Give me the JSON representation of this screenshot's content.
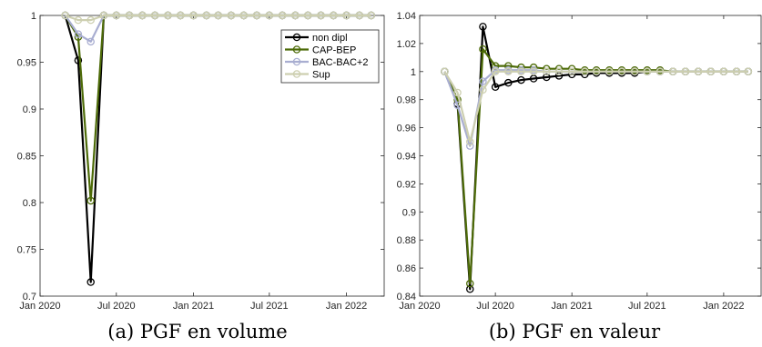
{
  "chart_data": [
    {
      "type": "line",
      "caption": "(a) PGF en volume",
      "xlim": [
        "2020-01-01",
        "2022-04-01"
      ],
      "ylim": [
        0.7,
        1.0
      ],
      "yticks": [
        0.7,
        0.75,
        0.8,
        0.85,
        0.9,
        0.95,
        1
      ],
      "ytick_labels": [
        "0.7",
        "0.75",
        "0.8",
        "0.85",
        "0.9",
        "0.95",
        "1"
      ],
      "xticks": [
        "2020-01-01",
        "2020-07-01",
        "2021-01-01",
        "2021-07-01",
        "2022-01-01"
      ],
      "xtick_labels": [
        "Jan 2020",
        "Jul 2020",
        "Jan 2021",
        "Jul 2021",
        "Jan 2022"
      ],
      "x": [
        "2020-03-01",
        "2020-04-01",
        "2020-05-01",
        "2020-06-01",
        "2020-07-01",
        "2020-08-01",
        "2020-09-01",
        "2020-10-01",
        "2020-11-01",
        "2020-12-01",
        "2021-01-01",
        "2021-02-01",
        "2021-03-01",
        "2021-04-01",
        "2021-05-01",
        "2021-06-01",
        "2021-07-01",
        "2021-08-01",
        "2021-09-01",
        "2021-10-01",
        "2021-11-01",
        "2021-12-01",
        "2022-01-01",
        "2022-02-01",
        "2022-03-01"
      ],
      "legend": {
        "placement": "top-right"
      },
      "series": [
        {
          "name": "non dipl",
          "color": "#000000",
          "values": [
            1,
            0.952,
            0.715,
            1,
            1,
            1,
            1,
            1,
            1,
            1,
            1,
            1,
            1,
            1,
            1,
            1,
            1,
            1,
            1,
            1,
            1,
            1,
            1,
            1,
            1
          ]
        },
        {
          "name": "CAP-BEP",
          "color": "#4d6b08",
          "values": [
            1,
            0.977,
            0.802,
            1,
            1,
            1,
            1,
            1,
            1,
            1,
            1,
            1,
            1,
            1,
            1,
            1,
            1,
            1,
            1,
            1,
            1,
            1,
            1,
            1,
            1
          ]
        },
        {
          "name": "BAC-BAC+2",
          "color": "#a9aed1",
          "values": [
            1,
            0.98,
            0.972,
            1,
            1,
            1,
            1,
            1,
            1,
            1,
            1,
            1,
            1,
            1,
            1,
            1,
            1,
            1,
            1,
            1,
            1,
            1,
            1,
            1,
            1
          ]
        },
        {
          "name": "Sup",
          "color": "#cdcfb0",
          "values": [
            1,
            0.995,
            0.995,
            1,
            1,
            1,
            1,
            1,
            1,
            1,
            1,
            1,
            1,
            1,
            1,
            1,
            1,
            1,
            1,
            1,
            1,
            1,
            1,
            1,
            1
          ]
        }
      ]
    },
    {
      "type": "line",
      "caption": "(b) PGF en valeur",
      "xlim": [
        "2020-01-01",
        "2022-04-01"
      ],
      "ylim": [
        0.84,
        1.04
      ],
      "yticks": [
        0.84,
        0.86,
        0.88,
        0.9,
        0.92,
        0.94,
        0.96,
        0.98,
        1,
        1.02,
        1.04
      ],
      "ytick_labels": [
        "0.84",
        "0.86",
        "0.88",
        "0.9",
        "0.92",
        "0.94",
        "0.96",
        "0.98",
        "1",
        "1.02",
        "1.04"
      ],
      "xticks": [
        "2020-01-01",
        "2020-07-01",
        "2021-01-01",
        "2021-07-01",
        "2022-01-01"
      ],
      "xtick_labels": [
        "Jan 2020",
        "Jul 2020",
        "Jan 2021",
        "Jul 2021",
        "Jan 2022"
      ],
      "x": [
        "2020-03-01",
        "2020-04-01",
        "2020-05-01",
        "2020-06-01",
        "2020-07-01",
        "2020-08-01",
        "2020-09-01",
        "2020-10-01",
        "2020-11-01",
        "2020-12-01",
        "2021-01-01",
        "2021-02-01",
        "2021-03-01",
        "2021-04-01",
        "2021-05-01",
        "2021-06-01",
        "2021-07-01",
        "2021-08-01",
        "2021-09-01",
        "2021-10-01",
        "2021-11-01",
        "2021-12-01",
        "2022-01-01",
        "2022-02-01",
        "2022-03-01"
      ],
      "series": [
        {
          "name": "non dipl",
          "color": "#000000",
          "values": [
            1,
            0.977,
            0.845,
            1.032,
            0.989,
            0.992,
            0.994,
            0.995,
            0.996,
            0.997,
            0.998,
            0.998,
            0.999,
            0.999,
            0.999,
            0.999,
            1,
            1,
            1,
            1,
            1,
            1,
            1,
            1,
            1
          ]
        },
        {
          "name": "CAP-BEP",
          "color": "#4d6b08",
          "values": [
            1,
            0.98,
            0.849,
            1.016,
            1.004,
            1.004,
            1.003,
            1.003,
            1.002,
            1.002,
            1.002,
            1.001,
            1.001,
            1.001,
            1.001,
            1.001,
            1.001,
            1.001,
            1,
            1,
            1,
            1,
            1,
            1,
            1
          ]
        },
        {
          "name": "BAC-BAC+2",
          "color": "#a9aed1",
          "values": [
            1,
            0.976,
            0.947,
            0.993,
            1.001,
            1.001,
            1.001,
            1.001,
            1,
            1,
            1,
            1,
            1,
            1,
            1,
            1,
            1,
            1,
            1,
            1,
            1,
            1,
            1,
            1,
            1
          ]
        },
        {
          "name": "Sup",
          "color": "#cdcfb0",
          "values": [
            1,
            0.985,
            0.95,
            0.987,
            1,
            1,
            1,
            1,
            1,
            1,
            1,
            1,
            1,
            1,
            1,
            1,
            1,
            1,
            1,
            1,
            1,
            1,
            1,
            1,
            1
          ]
        }
      ]
    }
  ]
}
